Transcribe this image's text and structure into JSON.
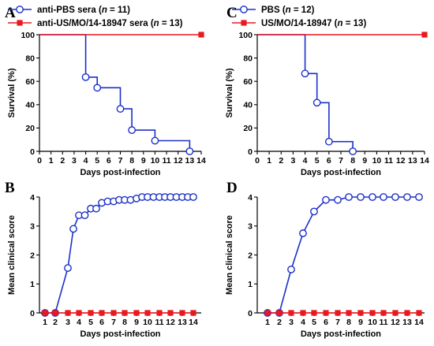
{
  "colors": {
    "blue": "#1b30c8",
    "red": "#e8191f",
    "axis": "#000000"
  },
  "x_ticks": [
    "0",
    "1",
    "2",
    "3",
    "4",
    "5",
    "6",
    "7",
    "8",
    "9",
    "10",
    "11",
    "12",
    "13",
    "14"
  ],
  "x_ticks_score": [
    "1",
    "2",
    "3",
    "4",
    "5",
    "6",
    "7",
    "8",
    "9",
    "10",
    "11",
    "12",
    "13",
    "14"
  ],
  "chart_data": [
    {
      "panel": "A",
      "type": "line",
      "step": true,
      "xlabel": "Days post-infection",
      "ylabel": "Survival (%)",
      "xlim": [
        0,
        14
      ],
      "ylim": [
        0,
        100
      ],
      "y_ticks": [
        "0",
        "20",
        "40",
        "60",
        "80",
        "100"
      ],
      "legend": [
        {
          "prefix": "anti-PBS sera (",
          "n_label": "n",
          "suffix": " = 11)"
        },
        {
          "prefix": "anti-US/MO/14-18947 sera (",
          "n_label": "n",
          "suffix": " = 13)"
        }
      ],
      "series": [
        {
          "name": "anti-PBS sera (n = 11)",
          "color": "#1b30c8",
          "marker": "circle-open",
          "x": [
            0,
            4,
            4,
            5,
            5,
            7,
            7,
            8,
            8,
            10,
            10,
            13,
            13
          ],
          "y": [
            100,
            100,
            63.6,
            63.6,
            54.5,
            54.5,
            36.4,
            36.4,
            18.2,
            18.2,
            9.1,
            9.1,
            0
          ],
          "marker_x": [
            4,
            5,
            7,
            8,
            10,
            13
          ],
          "marker_y": [
            63.6,
            54.5,
            36.4,
            18.2,
            9.1,
            0
          ]
        },
        {
          "name": "anti-US/MO/14-18947 sera (n = 13)",
          "color": "#e8191f",
          "marker": "square-filled",
          "x": [
            0,
            14
          ],
          "y": [
            100,
            100
          ],
          "marker_x": [
            14
          ],
          "marker_y": [
            100
          ]
        }
      ]
    },
    {
      "panel": "B",
      "type": "line",
      "xlabel": "Days post-infection",
      "ylabel": "Mean clinical score",
      "xlim": [
        1,
        14
      ],
      "ylim": [
        0,
        4
      ],
      "y_ticks": [
        "0",
        "1",
        "2",
        "3",
        "4"
      ],
      "series": [
        {
          "name": "anti-PBS sera (n = 11)",
          "color": "#1b30c8",
          "marker": "circle-open",
          "x": [
            1,
            2,
            3,
            3.5,
            4,
            4.5,
            5,
            5.5,
            6,
            6.5,
            7,
            7.5,
            8,
            8.5,
            9,
            9.5,
            10,
            10.5,
            11,
            11.5,
            12,
            12.5,
            13,
            13.5,
            14
          ],
          "y": [
            0,
            0,
            1.55,
            2.9,
            3.37,
            3.37,
            3.6,
            3.6,
            3.8,
            3.85,
            3.85,
            3.9,
            3.9,
            3.9,
            3.95,
            4.0,
            4.0,
            4.0,
            4.0,
            4.0,
            4.0,
            4.0,
            4.0,
            4.0,
            4.0
          ]
        },
        {
          "name": "anti-US/MO/14-18947 sera (n = 13)",
          "color": "#e8191f",
          "marker": "square-filled",
          "x": [
            1,
            2,
            3,
            4,
            5,
            6,
            7,
            8,
            9,
            10,
            11,
            12,
            13,
            14
          ],
          "y": [
            0,
            0,
            0,
            0,
            0,
            0,
            0,
            0,
            0,
            0,
            0,
            0,
            0,
            0
          ]
        }
      ]
    },
    {
      "panel": "C",
      "type": "line",
      "step": true,
      "xlabel": "Days post-infection",
      "ylabel": "Survival (%)",
      "xlim": [
        0,
        14
      ],
      "ylim": [
        0,
        100
      ],
      "y_ticks": [
        "0",
        "20",
        "40",
        "60",
        "80",
        "100"
      ],
      "legend": [
        {
          "prefix": "PBS (",
          "n_label": "n",
          "suffix": " = 12)"
        },
        {
          "prefix": "US/MO/14-18947 (",
          "n_label": "n",
          "suffix": " = 13)"
        }
      ],
      "series": [
        {
          "name": "PBS (n = 12)",
          "color": "#1b30c8",
          "marker": "circle-open",
          "x": [
            0,
            4,
            4,
            5,
            5,
            6,
            6,
            8,
            8
          ],
          "y": [
            100,
            100,
            66.7,
            66.7,
            41.7,
            41.7,
            8.3,
            8.3,
            0
          ],
          "marker_x": [
            4,
            5,
            6,
            8
          ],
          "marker_y": [
            66.7,
            41.7,
            8.3,
            0
          ]
        },
        {
          "name": "US/MO/14-18947 (n = 13)",
          "color": "#e8191f",
          "marker": "square-filled",
          "x": [
            0,
            14
          ],
          "y": [
            100,
            100
          ],
          "marker_x": [
            14
          ],
          "marker_y": [
            100
          ]
        }
      ]
    },
    {
      "panel": "D",
      "type": "line",
      "xlabel": "Days post-infection",
      "ylabel": "Mean clinical score",
      "xlim": [
        1,
        14
      ],
      "ylim": [
        0,
        4
      ],
      "y_ticks": [
        "0",
        "1",
        "2",
        "3",
        "4"
      ],
      "series": [
        {
          "name": "PBS (n = 12)",
          "color": "#1b30c8",
          "marker": "circle-open",
          "x": [
            1,
            2,
            3,
            4,
            5,
            6,
            7,
            8,
            9,
            10,
            11,
            12,
            13,
            14
          ],
          "y": [
            0,
            0,
            1.5,
            2.75,
            3.5,
            3.9,
            3.9,
            4.0,
            4.0,
            4.0,
            4.0,
            4.0,
            4.0,
            4.0
          ]
        },
        {
          "name": "US/MO/14-18947 (n = 13)",
          "color": "#e8191f",
          "marker": "square-filled",
          "x": [
            1,
            2,
            3,
            4,
            5,
            6,
            7,
            8,
            9,
            10,
            11,
            12,
            13,
            14
          ],
          "y": [
            0,
            0,
            0,
            0,
            0,
            0,
            0,
            0,
            0,
            0,
            0,
            0,
            0,
            0
          ]
        }
      ]
    }
  ]
}
